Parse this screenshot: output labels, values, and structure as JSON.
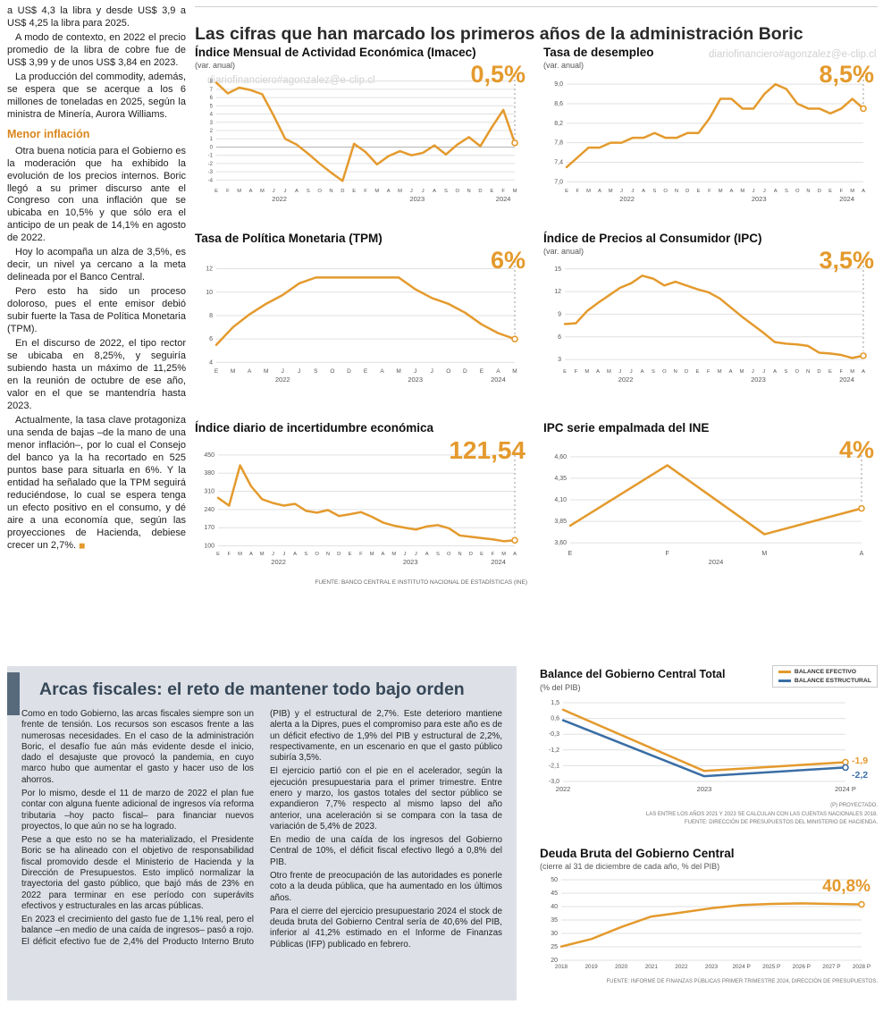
{
  "watermark": "diariofinanciero#agonzalez@e-clip.cl",
  "colors": {
    "accent_orange": "#E49A2D",
    "accent_blue": "#3A6EA5",
    "panel_bg": "#dde1e7",
    "panel_bar": "#576a7c",
    "heading_orange": "#D9861B"
  },
  "main_title": "Las cifras que han marcado los primeros años de la administración Boric",
  "source_top": "FUENTE: BANCO CENTRAL E INSTITUTO NACIONAL DE ESTADÍSTICAS (INE)",
  "left_article": {
    "paras_top": [
      "a US$ 4,3 la libra y desde US$ 3,9 a US$ 4,25 la libra para 2025.",
      "A modo de contexto, en 2022 el precio promedio de la libra de cobre fue de US$ 3,99 y de unos US$ 3,84 en 2023.",
      "La producción del commodity, además, se espera que se acerque a los 6 millones de toneladas en 2025, según la ministra de Minería, Aurora Williams."
    ],
    "heading": "Menor inflación",
    "paras_bottom": [
      "Otra buena noticia para el Gobierno es la moderación que ha exhibido la evolución de los precios internos. Boric llegó a su primer discurso ante el Congreso con una inflación que se ubicaba en 10,5% y que sólo era el anticipo de un peak de 14,1% en agosto de 2022.",
      "Hoy lo acompaña un alza de 3,5%, es decir, un nivel ya cercano a la meta delineada por el Banco Central.",
      "Pero esto ha sido un proceso doloroso, pues el ente emisor debió subir fuerte la Tasa de Política Monetaria (TPM).",
      "En el discurso de 2022, el tipo rector se ubicaba en 8,25%, y seguiría subiendo hasta un máximo de 11,25% en la reunión de octubre de ese año, valor en el que se mantendría hasta 2023.",
      "Actualmente, la tasa clave protagoniza una senda de bajas –de la mano de una menor inflación–, por lo cual el Consejo del banco ya la ha recortado en 525 puntos base para situarla en 6%. Y la entidad ha señalado que la TPM seguirá reduciéndose, lo cual se espera tenga un efecto positivo en el consumo, y dé aire a una economía que, según las proyecciones de Hacienda, debiese crecer un 2,7%."
    ],
    "end_mark": "◼"
  },
  "fiscal_panel": {
    "title": "Arcas fiscales: el reto de mantener todo bajo orden",
    "paragraphs": [
      "Como en todo Gobierno, las arcas fiscales siempre son un frente de tensión. Los recursos son escasos frente a las numerosas necesidades. En el caso de la administración Boric, el desafío fue aún más evidente desde el inicio, dado el desajuste que provocó la pandemia, en cuyo marco hubo que aumentar el gasto y hacer uso de los ahorros.",
      "Por lo mismo, desde el 11 de marzo de 2022 el plan fue contar con alguna fuente adicional de ingresos vía reforma tributaria –hoy pacto fiscal– para financiar nuevos proyectos, lo que aún no se ha logrado.",
      "Pese a que esto no se ha materializado, el Presidente Boric se ha alineado con el objetivo de responsabilidad fiscal promovido desde el Ministerio de Hacienda y la Dirección de Presupuestos. Esto implicó normalizar la trayectoria del gasto público, que bajó más de 23% en 2022 para terminar en ese período con superávits efectivos y estructurales en las arcas públicas.",
      "En 2023 el crecimiento del gasto fue de 1,1% real, pero el balance –en medio de una caída de ingresos– pasó a rojo. El déficit efectivo fue de 2,4% del Producto Interno Bruto (PIB) y el estructural de 2,7%. Este deterioro mantiene alerta a la Dipres, pues el compromiso para este año es de un déficit efectivo de 1,9% del PIB y estructural de 2,2%, respectivamente, en un escenario en que el gasto público subiría 3,5%.",
      "El ejercicio partió con el pie en el acelerador, según la ejecución presupuestaria para el primer trimestre. Entre enero y marzo, los gastos totales del sector público se expandieron 7,7% respecto al mismo lapso del año anterior, una aceleración si se compara con la tasa de variación de 5,4% de 2023.",
      "En medio de una caída de los ingresos del Gobierno Central de 10%, el déficit fiscal efectivo llegó a 0,8% del PIB.",
      "Otro frente de preocupación de las autoridades es ponerle coto a la deuda pública, que ha aumentado en los últimos años.",
      "Para el cierre del ejercicio presupuestario 2024 el stock de deuda bruta del Gobierno Central sería de 40,6% del PIB, inferior al 41,2% estimado en el Informe de Finanzas Públicas (IFP) publicado en febrero."
    ]
  },
  "chart_data": [
    {
      "id": "imacec",
      "type": "line",
      "title": "Índice Mensual de Actividad Económica (Imacec)",
      "subtitle": "(var. anual)",
      "big_label": "0,5%",
      "ymin": -4.5,
      "ymax": 8.5,
      "y_ticks": [
        {
          "v": 8,
          "l": "8"
        },
        {
          "v": 7,
          "l": "7"
        },
        {
          "v": 6,
          "l": "6"
        },
        {
          "v": 5,
          "l": "5"
        },
        {
          "v": 4,
          "l": "4"
        },
        {
          "v": 3,
          "l": "3"
        },
        {
          "v": 2,
          "l": "2"
        },
        {
          "v": 1,
          "l": "1"
        },
        {
          "v": 0,
          "l": "0"
        },
        {
          "v": -1,
          "l": "-1"
        },
        {
          "v": -2,
          "l": "-2"
        },
        {
          "v": -3,
          "l": "-3"
        },
        {
          "v": -4,
          "l": "-4"
        }
      ],
      "x_labels": [
        "E",
        "F",
        "M",
        "A",
        "M",
        "J",
        "J",
        "A",
        "S",
        "O",
        "N",
        "D",
        "E",
        "F",
        "M",
        "A",
        "M",
        "J",
        "J",
        "A",
        "S",
        "O",
        "N",
        "D",
        "E",
        "F",
        "M"
      ],
      "year_groups": [
        {
          "label": "2022",
          "from": 0,
          "to": 11
        },
        {
          "label": "2023",
          "from": 12,
          "to": 23
        },
        {
          "label": "2024",
          "from": 24,
          "to": 26
        }
      ],
      "series": [
        {
          "name": "Imacec",
          "color": "#E49A2D",
          "values": [
            7.8,
            6.5,
            7.2,
            6.9,
            6.4,
            3.8,
            1.0,
            0.3,
            -0.8,
            -2.0,
            -3.1,
            -4.1,
            0.4,
            -0.6,
            -2.1,
            -1.1,
            -0.5,
            -1.0,
            -0.7,
            0.2,
            -0.9,
            0.3,
            1.2,
            0.1,
            2.4,
            4.5,
            0.5
          ]
        }
      ],
      "margins": {
        "l": 24,
        "r": 14,
        "t": 6,
        "b": 26
      },
      "yfont": 6,
      "xfont": 5.8,
      "zero": true,
      "end_marker": true,
      "dash_line": true
    },
    {
      "id": "desempleo",
      "type": "line",
      "title": "Tasa de desempleo",
      "subtitle": "(var. anual)",
      "big_label": "8,5%",
      "ymin": 6.95,
      "ymax": 9.15,
      "y_ticks": [
        {
          "v": 9.0,
          "l": "9,0"
        },
        {
          "v": 8.6,
          "l": "8,6"
        },
        {
          "v": 8.2,
          "l": "8,2"
        },
        {
          "v": 7.8,
          "l": "7,8"
        },
        {
          "v": 7.4,
          "l": "7,4"
        },
        {
          "v": 7.0,
          "l": "7,0"
        }
      ],
      "x_labels": [
        "E",
        "F",
        "M",
        "A",
        "M",
        "J",
        "J",
        "A",
        "S",
        "O",
        "N",
        "D",
        "E",
        "F",
        "M",
        "A",
        "M",
        "J",
        "J",
        "A",
        "S",
        "O",
        "N",
        "D",
        "E",
        "F",
        "M",
        "A"
      ],
      "year_groups": [
        {
          "label": "2022",
          "from": 0,
          "to": 11
        },
        {
          "label": "2023",
          "from": 12,
          "to": 23
        },
        {
          "label": "2024",
          "from": 24,
          "to": 27
        }
      ],
      "series": [
        {
          "name": "Tasa de desempleo",
          "color": "#E49A2D",
          "values": [
            7.3,
            7.5,
            7.7,
            7.7,
            7.8,
            7.8,
            7.9,
            7.9,
            8.0,
            7.9,
            7.9,
            8.0,
            8.0,
            8.3,
            8.7,
            8.7,
            8.5,
            8.5,
            8.8,
            9.0,
            8.9,
            8.6,
            8.5,
            8.5,
            8.4,
            8.5,
            8.7,
            8.5
          ]
        }
      ],
      "margins": {
        "l": 26,
        "r": 14,
        "t": 6,
        "b": 26
      },
      "yfont": 7,
      "xfont": 5.8,
      "end_marker": true,
      "dash_line": true
    },
    {
      "id": "tpm",
      "type": "line",
      "title": "Tasa de Política Monetaria (TPM)",
      "subtitle": "",
      "big_label": "6%",
      "ymin": 3.8,
      "ymax": 12.5,
      "y_ticks": [
        {
          "v": 12,
          "l": "12"
        },
        {
          "v": 10,
          "l": "10"
        },
        {
          "v": 8,
          "l": "8"
        },
        {
          "v": 6,
          "l": "6"
        },
        {
          "v": 4,
          "l": "4"
        }
      ],
      "x_labels": [
        "E",
        "M",
        "A",
        "M",
        "J",
        "J",
        "S",
        "O",
        "D",
        "E",
        "A",
        "M",
        "J",
        "J",
        "O",
        "D",
        "E",
        "A",
        "M"
      ],
      "year_groups": [
        {
          "label": "2022",
          "from": 0,
          "to": 8
        },
        {
          "label": "2023",
          "from": 9,
          "to": 15
        },
        {
          "label": "2024",
          "from": 16,
          "to": 18
        }
      ],
      "series": [
        {
          "name": "TPM",
          "color": "#E49A2D",
          "values": [
            5.5,
            7.0,
            8.1,
            9.0,
            9.75,
            10.75,
            11.25,
            11.25,
            11.25,
            11.25,
            11.25,
            11.25,
            10.25,
            9.5,
            9.0,
            8.25,
            7.25,
            6.5,
            6.0
          ]
        }
      ],
      "margins": {
        "l": 24,
        "r": 14,
        "t": 6,
        "b": 26
      },
      "yfont": 7,
      "xfont": 6.5,
      "end_marker": true,
      "dash_line": true
    },
    {
      "id": "ipc",
      "type": "line",
      "title": "Índice de Precios al Consumidor (IPC)",
      "subtitle": "(var. anual)",
      "big_label": "3,5%",
      "ymin": 2.3,
      "ymax": 15.8,
      "y_ticks": [
        {
          "v": 15,
          "l": "15"
        },
        {
          "v": 12,
          "l": "12"
        },
        {
          "v": 9,
          "l": "9"
        },
        {
          "v": 6,
          "l": "6"
        },
        {
          "v": 3,
          "l": "3"
        }
      ],
      "x_labels": [
        "E",
        "F",
        "M",
        "A",
        "M",
        "J",
        "J",
        "A",
        "S",
        "O",
        "N",
        "D",
        "E",
        "F",
        "M",
        "A",
        "M",
        "J",
        "J",
        "A",
        "S",
        "O",
        "N",
        "D",
        "E",
        "F",
        "M",
        "A"
      ],
      "year_groups": [
        {
          "label": "2022",
          "from": 0,
          "to": 11
        },
        {
          "label": "2023",
          "from": 12,
          "to": 23
        },
        {
          "label": "2024",
          "from": 24,
          "to": 27
        }
      ],
      "series": [
        {
          "name": "IPC",
          "color": "#E49A2D",
          "values": [
            7.7,
            7.8,
            9.4,
            10.5,
            11.5,
            12.5,
            13.1,
            14.1,
            13.7,
            12.8,
            13.3,
            12.8,
            12.3,
            11.9,
            11.1,
            9.9,
            8.7,
            7.6,
            6.5,
            5.3,
            5.1,
            5.0,
            4.8,
            3.9,
            3.8,
            3.6,
            3.2,
            3.5
          ]
        }
      ],
      "margins": {
        "l": 24,
        "r": 14,
        "t": 6,
        "b": 26
      },
      "yfont": 7,
      "xfont": 5.8,
      "end_marker": true,
      "dash_line": true
    },
    {
      "id": "incertidumbre",
      "type": "line",
      "title": "Índice diario de incertidumbre económica",
      "subtitle": "",
      "big_label": "121,54",
      "ymin": 95,
      "ymax": 460,
      "y_ticks": [
        {
          "v": 450,
          "l": "450"
        },
        {
          "v": 380,
          "l": "380"
        },
        {
          "v": 310,
          "l": "310"
        },
        {
          "v": 240,
          "l": "240"
        },
        {
          "v": 170,
          "l": "170"
        },
        {
          "v": 100,
          "l": "100"
        }
      ],
      "x_labels": [
        "E",
        "F",
        "M",
        "A",
        "M",
        "J",
        "J",
        "A",
        "S",
        "O",
        "N",
        "D",
        "E",
        "F",
        "M",
        "A",
        "M",
        "J",
        "J",
        "A",
        "S",
        "O",
        "N",
        "D",
        "E",
        "F",
        "M",
        "A"
      ],
      "year_groups": [
        {
          "label": "2022",
          "from": 0,
          "to": 11
        },
        {
          "label": "2023",
          "from": 12,
          "to": 23
        },
        {
          "label": "2024",
          "from": 24,
          "to": 27
        }
      ],
      "series": [
        {
          "name": "Incertidumbre económica",
          "color": "#E49A2D",
          "values": [
            285,
            255,
            410,
            330,
            280,
            265,
            255,
            262,
            235,
            228,
            238,
            215,
            222,
            230,
            212,
            190,
            178,
            170,
            163,
            175,
            180,
            168,
            140,
            135,
            130,
            125,
            118,
            121.54
          ]
        }
      ],
      "margins": {
        "l": 26,
        "r": 14,
        "t": 6,
        "b": 26
      },
      "yfont": 7,
      "xfont": 5.8,
      "end_marker": true,
      "dash_line": true
    },
    {
      "id": "ipc_empalmada",
      "type": "line",
      "title": "IPC serie empalmada del INE",
      "subtitle": "",
      "big_label": "4%",
      "ymin": 3.55,
      "ymax": 4.65,
      "y_ticks": [
        {
          "v": 4.6,
          "l": "4,60"
        },
        {
          "v": 4.35,
          "l": "4,35"
        },
        {
          "v": 4.1,
          "l": "4,10"
        },
        {
          "v": 3.85,
          "l": "3,85"
        },
        {
          "v": 3.6,
          "l": "3,60"
        }
      ],
      "x_labels": [
        "E",
        "F",
        "M",
        "A"
      ],
      "year_groups": [
        {
          "label": "2024",
          "from": 0,
          "to": 3
        }
      ],
      "series": [
        {
          "name": "IPC serie empalmada",
          "color": "#E49A2D",
          "values": [
            3.8,
            4.5,
            3.7,
            4.0
          ]
        }
      ],
      "margins": {
        "l": 30,
        "r": 16,
        "t": 6,
        "b": 26
      },
      "yfont": 7,
      "xfont": 7,
      "end_marker": true,
      "dash_line": true
    },
    {
      "id": "balance",
      "type": "line",
      "title": "Balance del Gobierno Central Total",
      "subtitle": "(% del PIB)",
      "ymin": -3.1,
      "ymax": 1.6,
      "y_ticks": [
        {
          "v": 1.5,
          "l": "1,5"
        },
        {
          "v": 0.6,
          "l": "0,6"
        },
        {
          "v": -0.3,
          "l": "-0,3"
        },
        {
          "v": -1.2,
          "l": "-1,2"
        },
        {
          "v": -2.1,
          "l": "-2,1"
        },
        {
          "v": -3.0,
          "l": "-3,0"
        }
      ],
      "x_labels": [
        "2022",
        "2023",
        "2024 P"
      ],
      "series": [
        {
          "name": "BALANCE EFECTIVO",
          "color": "#E49A2D",
          "values": [
            1.1,
            -2.4,
            -1.9
          ],
          "end_label": "-1,9",
          "label_dy": -2
        },
        {
          "name": "BALANCE ESTRUCTURAL",
          "color": "#3A6EA5",
          "values": [
            0.5,
            -2.7,
            -2.2
          ],
          "end_label": "-2,2",
          "label_dy": 8
        }
      ],
      "margins": {
        "l": 26,
        "r": 36,
        "t": 8,
        "b": 18
      },
      "yfont": 7,
      "xfont": 7.5,
      "end_marker": true,
      "dash_line": false,
      "footnotes": [
        "(P) PROYECTADO.",
        "LAS ENTRE LOS AÑOS 2021 Y 2023 SE CALCULAN CON LAS CUENTAS NACIONALES 2018.",
        "FUENTE: DIRECCIÓN DE PRESUPUESTOS DEL MINISTERIO DE HACIENDA."
      ]
    },
    {
      "id": "deuda_bruta",
      "type": "line",
      "title": "Deuda Bruta del Gobierno Central",
      "subtitle": "(cierre al 31 de diciembre de cada año, % del PIB)",
      "big_label": "40,8%",
      "ymin": 20,
      "ymax": 50,
      "y_ticks": [
        {
          "v": 50,
          "l": "50"
        },
        {
          "v": 45,
          "l": "45"
        },
        {
          "v": 40,
          "l": "40"
        },
        {
          "v": 35,
          "l": "35"
        },
        {
          "v": 30,
          "l": "30"
        },
        {
          "v": 25,
          "l": "25"
        },
        {
          "v": 20,
          "l": "20"
        }
      ],
      "x_labels": [
        "2018",
        "2019",
        "2020",
        "2021",
        "2022",
        "2023",
        "2024 P",
        "2025 P",
        "2026 P",
        "2027 P",
        "2028 P"
      ],
      "series": [
        {
          "name": "Deuda bruta",
          "color": "#E49A2D",
          "values": [
            25.1,
            27.9,
            32.4,
            36.3,
            37.8,
            39.4,
            40.6,
            41.0,
            41.2,
            41.0,
            40.8
          ]
        }
      ],
      "margins": {
        "l": 24,
        "r": 18,
        "t": 8,
        "b": 18
      },
      "yfont": 7,
      "xfont": 6.4,
      "end_marker": true,
      "dash_line": false,
      "source": "FUENTE: INFORME DE FINANZAS PÚBLICAS PRIMER TRIMESTRE 2024, DIRECCIÓN DE PRESUPUESTOS."
    }
  ]
}
